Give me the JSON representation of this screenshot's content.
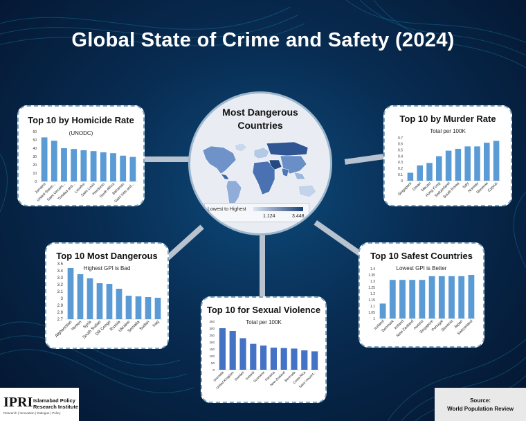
{
  "title": "Global State of Crime and Safety (2024)",
  "map_panel": {
    "title_line1": "Most Dangerous",
    "title_line2": "Countries",
    "legend_label": "Lowest to Highest",
    "legend_min": "1.124",
    "legend_max": "3.448"
  },
  "logo": {
    "name": "IPRI",
    "line1": "Islamabad Policy",
    "line2": "Research Institute",
    "tagline": "Research | Innovation | Dialogue | Policy"
  },
  "source": {
    "label": "Source:",
    "value": "World Population Review"
  },
  "colors": {
    "bar": "#5b9bd5",
    "bar_dark": "#4472c4",
    "map_low": "#dbe6f4",
    "map_high": "#1c3f73"
  },
  "chart_data": [
    {
      "id": "homicide",
      "type": "bar",
      "title": "Top 10 by Homicide Rate",
      "subtitle": "(UNODC)",
      "categories": [
        "Jamaica",
        "United States...",
        "Saint Vincent...",
        "Trinidad and...",
        "Lesotho",
        "Saint Lucia",
        "Honduras",
        "South Africa",
        "Bahamas",
        "Saint Kitts and..."
      ],
      "values": [
        53,
        49,
        40,
        39,
        37.5,
        36.5,
        35,
        34,
        31,
        29.5
      ],
      "yticks": [
        0,
        10,
        20,
        30,
        40,
        50,
        60
      ],
      "ylim": [
        0,
        60
      ],
      "grid": false
    },
    {
      "id": "murder",
      "type": "bar",
      "title": "Top 10 by Murder Rate",
      "subtitle": "Total per 100K",
      "categories": [
        "Singapore",
        "Oman",
        "Macau",
        "Hong Kong",
        "Switzerland",
        "South Korea",
        "Italy",
        "Norway",
        "Slovenia",
        "Cyprus"
      ],
      "values": [
        0.13,
        0.25,
        0.29,
        0.4,
        0.49,
        0.52,
        0.56,
        0.56,
        0.62,
        0.65
      ],
      "yticks": [
        "0",
        "0.1",
        "0.2",
        "0.3",
        "0.4",
        "0.5",
        "0.6",
        "0.7"
      ],
      "ylim": [
        0,
        0.7
      ],
      "grid": false
    },
    {
      "id": "dangerous",
      "type": "bar",
      "title": "Top 10 Most Dangerous",
      "subtitle": "Highest GPI is Bad",
      "categories": [
        "Afghanistan",
        "Yemen",
        "Syria",
        "South Sudan",
        "DR Congo",
        "Russia",
        "Ukraine",
        "Somalia",
        "Sudan",
        "Iraq"
      ],
      "values": [
        3.44,
        3.35,
        3.29,
        3.22,
        3.21,
        3.14,
        3.04,
        3.03,
        3.02,
        3.01
      ],
      "yticks": [
        "2.7",
        "2.8",
        "2.9",
        "3",
        "3.1",
        "3.2",
        "3.3",
        "3.4",
        "3.5"
      ],
      "ylim": [
        2.7,
        3.5
      ],
      "grid": false
    },
    {
      "id": "sexual",
      "type": "bar",
      "title": "Top 10 for Sexual Violence",
      "subtitle": "Total per 100K",
      "categories": [
        "Grenada",
        "United Kingdom",
        "Sweden",
        "Iceland",
        "Suriname",
        "Panama",
        "New Zealand",
        "Bermuda",
        "Costa Rica",
        "Saint Vincent..."
      ],
      "values": [
        300,
        280,
        228,
        187,
        175,
        160,
        157,
        153,
        140,
        133
      ],
      "yticks": [
        0,
        50,
        100,
        150,
        200,
        250,
        300,
        350
      ],
      "ylim": [
        0,
        350
      ],
      "grid": false
    },
    {
      "id": "safest",
      "type": "bar",
      "title": "Top 10 Safest Countries",
      "subtitle": "Lowest GPI is Better",
      "categories": [
        "Iceland",
        "Denmark",
        "Ireland",
        "New Zealand",
        "Austria",
        "Singapore",
        "Portugal",
        "Slovenia",
        "Japan",
        "Switzerland"
      ],
      "values": [
        1.12,
        1.31,
        1.31,
        1.31,
        1.31,
        1.34,
        1.34,
        1.34,
        1.34,
        1.35
      ],
      "yticks": [
        "1",
        "1.05",
        "1.1",
        "1.15",
        "1.2",
        "1.25",
        "1.3",
        "1.35",
        "1.4"
      ],
      "ylim": [
        1,
        1.4
      ],
      "grid": false
    }
  ]
}
